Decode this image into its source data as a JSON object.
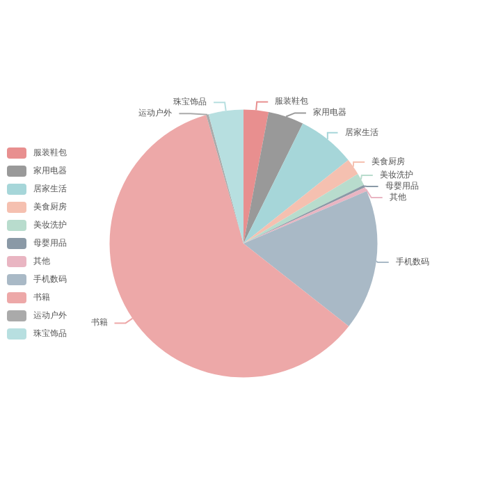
{
  "chart_data": {
    "type": "pie",
    "categories": [
      "服装鞋包",
      "家用电器",
      "居家生活",
      "美食厨房",
      "美妆洗护",
      "母婴用品",
      "其他",
      "手机数码",
      "书籍",
      "运动户外",
      "珠宝饰品"
    ],
    "values": [
      3,
      4.3,
      7,
      2,
      1.5,
      0.3,
      0.5,
      17,
      59.9,
      0.3,
      4.2
    ],
    "colors": [
      "#e88f8f",
      "#999999",
      "#a6d6d9",
      "#f5c0b0",
      "#b8dccd",
      "#8a99a6",
      "#e9b5c2",
      "#a9b9c6",
      "#eda8a8",
      "#aaaaaa",
      "#b7dfe0"
    ],
    "legend": "left"
  }
}
